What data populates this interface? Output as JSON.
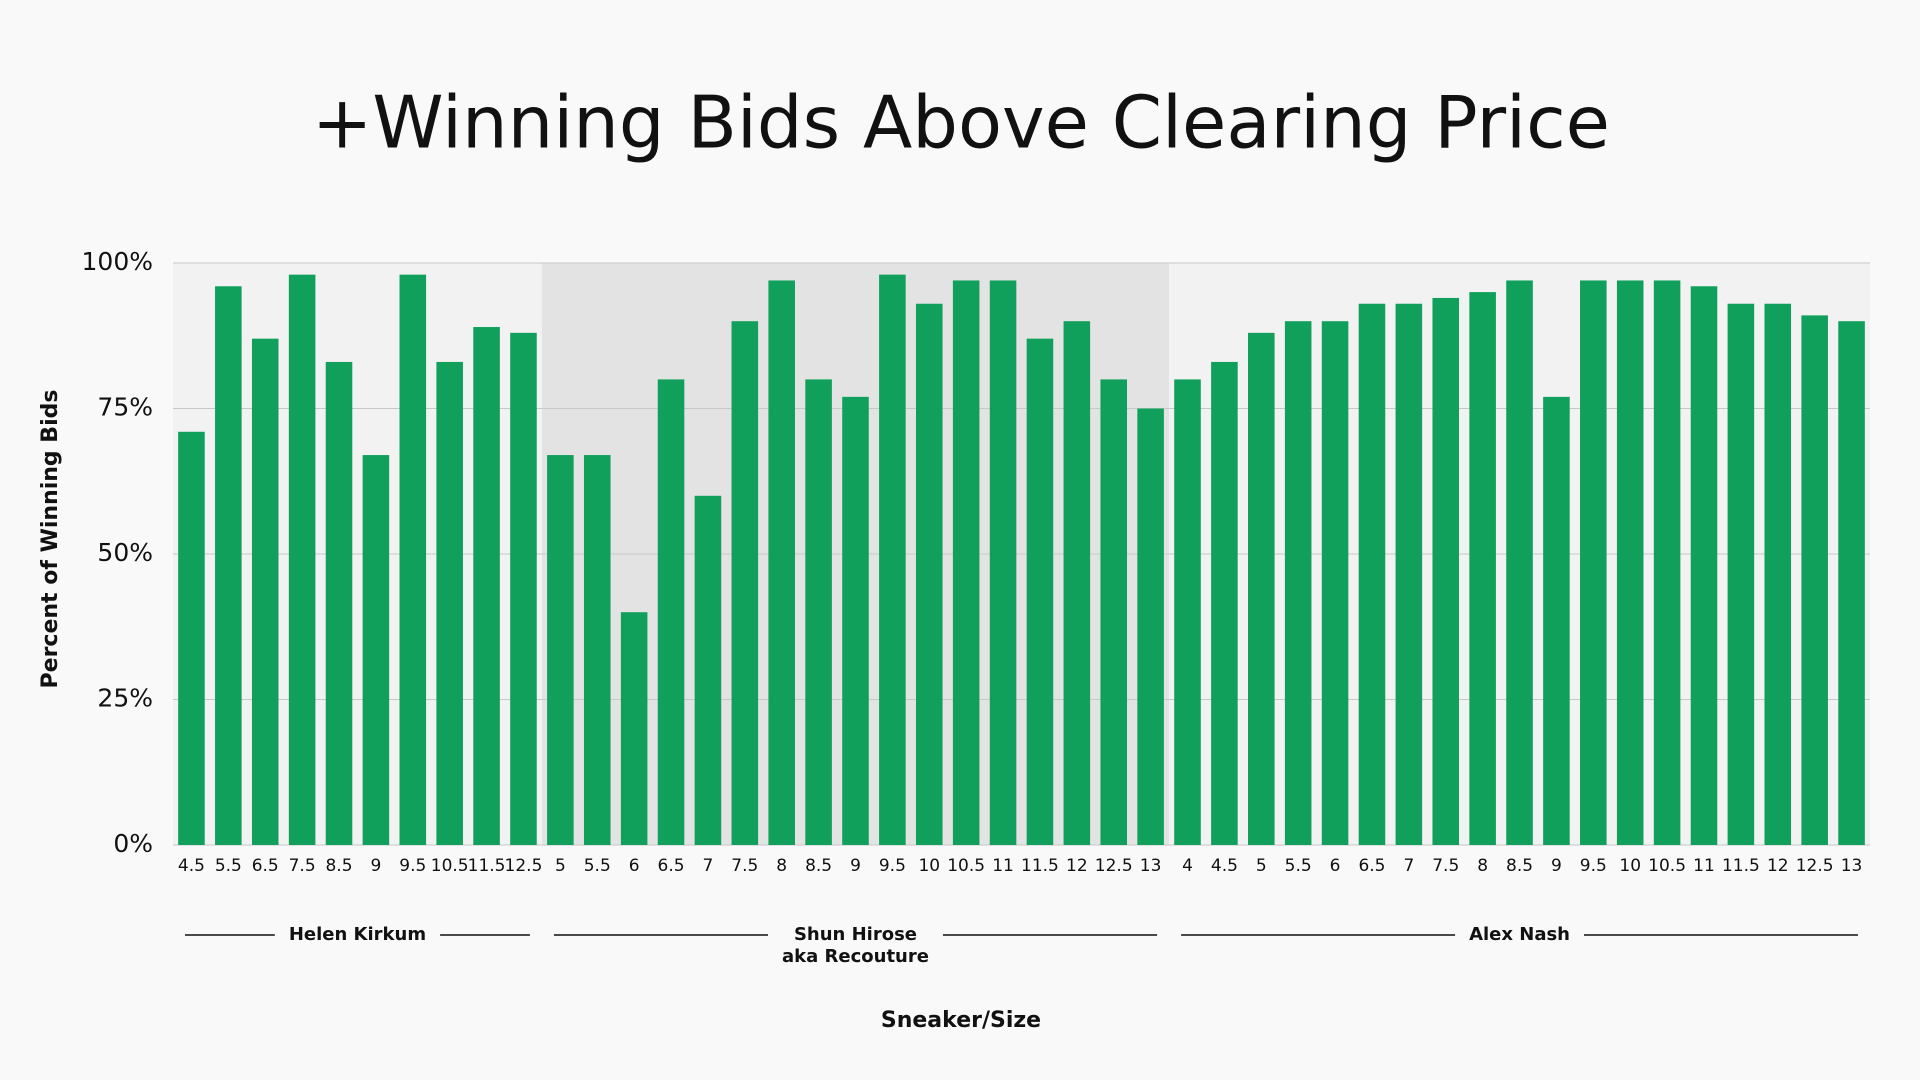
{
  "chart_data": {
    "type": "bar",
    "title": "+Winning Bids Above Clearing Price",
    "x_label": "Sneaker/Size",
    "y_label": "Percent of Winning Bids",
    "color": "#10a05c",
    "grid": true,
    "ylim": [
      0,
      100
    ],
    "yticks": [
      {
        "value": 0,
        "label": "0%"
      },
      {
        "value": 25,
        "label": "25%"
      },
      {
        "value": 50,
        "label": "50%"
      },
      {
        "value": 75,
        "label": "75%"
      },
      {
        "value": 100,
        "label": "100%"
      }
    ],
    "groups": [
      {
        "name_lines": [
          "Helen Kirkum"
        ],
        "background": "#f2f2f2",
        "categories": [
          "4.5",
          "5.5",
          "6.5",
          "7.5",
          "8.5",
          "9",
          "9.5",
          "10.5",
          "11.5",
          "12.5"
        ],
        "values": [
          71,
          96,
          87,
          98,
          83,
          67,
          98,
          83,
          89,
          88
        ]
      },
      {
        "name_lines": [
          "Shun Hirose",
          "aka Recouture"
        ],
        "background": "#e3e3e3",
        "categories": [
          "5",
          "5.5",
          "6",
          "6.5",
          "7",
          "7.5",
          "8",
          "8.5",
          "9",
          "9.5",
          "10",
          "10.5",
          "11",
          "11.5",
          "12",
          "12.5",
          "13"
        ],
        "values": [
          67,
          67,
          40,
          80,
          60,
          90,
          97,
          80,
          77,
          98,
          93,
          97,
          97,
          87,
          90,
          80,
          75
        ]
      },
      {
        "name_lines": [
          "Alex Nash"
        ],
        "background": "#f2f2f2",
        "categories": [
          "4",
          "4.5",
          "5",
          "5.5",
          "6",
          "6.5",
          "7",
          "7.5",
          "8",
          "8.5",
          "9",
          "9.5",
          "10",
          "10.5",
          "11",
          "11.5",
          "12",
          "12.5",
          "13"
        ],
        "values": [
          80,
          83,
          88,
          90,
          90,
          93,
          93,
          94,
          95,
          97,
          77,
          97,
          97,
          97,
          96,
          93,
          93,
          91,
          90
        ]
      }
    ]
  }
}
